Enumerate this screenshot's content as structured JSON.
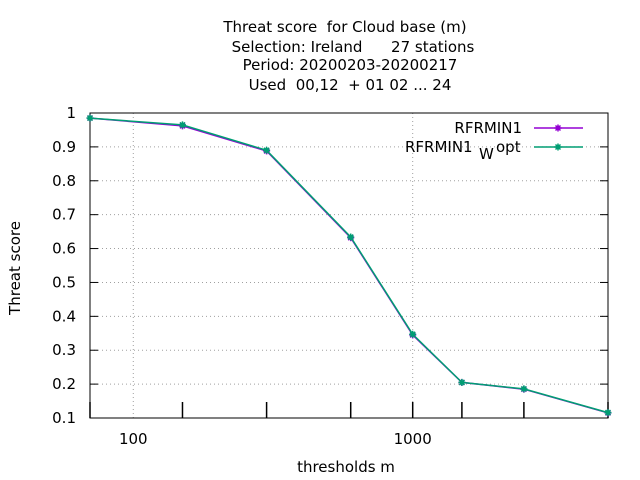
{
  "chart_data": {
    "type": "line",
    "title_lines": [
      "Threat score  for Cloud base (m)",
      "Selection: Ireland      27 stations",
      "Period: 20200203-20200217",
      "Used  00,12  + 01 02 ... 24"
    ],
    "xlabel": "thresholds m",
    "ylabel": "Threat score",
    "x_scale": "log",
    "xlim": [
      70,
      5000
    ],
    "ylim": [
      0.1,
      1.0
    ],
    "x_tick_labels": [
      "100",
      "1000"
    ],
    "y_tick_labels": [
      "1",
      "0.9",
      "0.8",
      "0.7",
      "0.6",
      "0.5",
      "0.4",
      "0.3",
      "0.2",
      "0.1"
    ],
    "grid": true,
    "legend_position": "top-right",
    "x": [
      70,
      150,
      300,
      600,
      1000,
      1500,
      2500,
      5000
    ],
    "series": [
      {
        "name": "RFRMIN1",
        "color": "#9400d3",
        "values": [
          0.985,
          0.962,
          0.888,
          0.632,
          0.345,
          0.205,
          0.185,
          0.115
        ]
      },
      {
        "name": "RFRMIN1",
        "name_subscript": "W",
        "name_suffix": "opt",
        "color": "#009e73",
        "values": [
          0.985,
          0.965,
          0.89,
          0.634,
          0.347,
          0.205,
          0.186,
          0.116
        ]
      }
    ]
  }
}
